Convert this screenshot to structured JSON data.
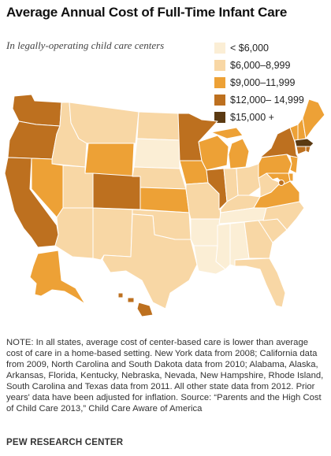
{
  "header": {
    "title": "Average Annual Cost of Full-Time Infant Care",
    "subtitle": "In legally-operating child care centers"
  },
  "legend": [
    {
      "label": "< $6,000",
      "color": "#fbeed5"
    },
    {
      "label": "$6,000–8,999",
      "color": "#f8d7a5"
    },
    {
      "label": "$9,000–11,999",
      "color": "#eda136"
    },
    {
      "label": "$12,000– 14,999",
      "color": "#bd701f"
    },
    {
      "label": "$15,000 +",
      "color": "#5b3a12"
    }
  ],
  "map": {
    "states": [
      {
        "id": "WA",
        "tier": 3
      },
      {
        "id": "OR",
        "tier": 3
      },
      {
        "id": "CA",
        "tier": 3
      },
      {
        "id": "ID",
        "tier": 1
      },
      {
        "id": "NV",
        "tier": 2
      },
      {
        "id": "MT",
        "tier": 1
      },
      {
        "id": "WY",
        "tier": 2
      },
      {
        "id": "UT",
        "tier": 1
      },
      {
        "id": "AZ",
        "tier": 1
      },
      {
        "id": "CO",
        "tier": 3
      },
      {
        "id": "NM",
        "tier": 1
      },
      {
        "id": "ND",
        "tier": 1
      },
      {
        "id": "SD",
        "tier": 0
      },
      {
        "id": "NE",
        "tier": 1
      },
      {
        "id": "KS",
        "tier": 2
      },
      {
        "id": "OK",
        "tier": 1
      },
      {
        "id": "TX",
        "tier": 1
      },
      {
        "id": "MN",
        "tier": 3
      },
      {
        "id": "IA",
        "tier": 2
      },
      {
        "id": "MO",
        "tier": 1
      },
      {
        "id": "AR",
        "tier": 0
      },
      {
        "id": "LA",
        "tier": 0
      },
      {
        "id": "WI",
        "tier": 2
      },
      {
        "id": "IL",
        "tier": 3
      },
      {
        "id": "MI",
        "tier": 2
      },
      {
        "id": "IN",
        "tier": 1
      },
      {
        "id": "OH",
        "tier": 1
      },
      {
        "id": "KY",
        "tier": 1
      },
      {
        "id": "TN",
        "tier": 0
      },
      {
        "id": "MS",
        "tier": 0
      },
      {
        "id": "AL",
        "tier": 0
      },
      {
        "id": "GA",
        "tier": 1
      },
      {
        "id": "FL",
        "tier": 1
      },
      {
        "id": "SC",
        "tier": 1
      },
      {
        "id": "NC",
        "tier": 1
      },
      {
        "id": "VA",
        "tier": 2
      },
      {
        "id": "WV",
        "tier": 1
      },
      {
        "id": "PA",
        "tier": 2
      },
      {
        "id": "NY",
        "tier": 3
      },
      {
        "id": "VT",
        "tier": 2
      },
      {
        "id": "NH",
        "tier": 2
      },
      {
        "id": "ME",
        "tier": 2
      },
      {
        "id": "MA",
        "tier": 4
      },
      {
        "id": "RI",
        "tier": 3
      },
      {
        "id": "CT",
        "tier": 3
      },
      {
        "id": "NJ",
        "tier": 2
      },
      {
        "id": "DE",
        "tier": 2
      },
      {
        "id": "MD",
        "tier": 2
      },
      {
        "id": "DC",
        "tier": 3
      },
      {
        "id": "AK",
        "tier": 2
      },
      {
        "id": "HI",
        "tier": 3
      }
    ]
  },
  "note": "NOTE: In all states, average cost of center-based care is lower than average cost of care in a home-based setting. New York data from 2008; California data from 2009, North Carolina and South Dakota data from 2010; Alabama, Alaska, Arkansas, Florida, Kentucky, Nebraska, Nevada, New Hampshire, Rhode Island, South Carolina and Texas data from 2011. All other state data from 2012. Prior years' data have been adjusted for inflation. Source: “Parents and the High Cost of Child Care 2013,” Child Care Aware of America",
  "source_line": "PEW RESEARCH CENTER"
}
